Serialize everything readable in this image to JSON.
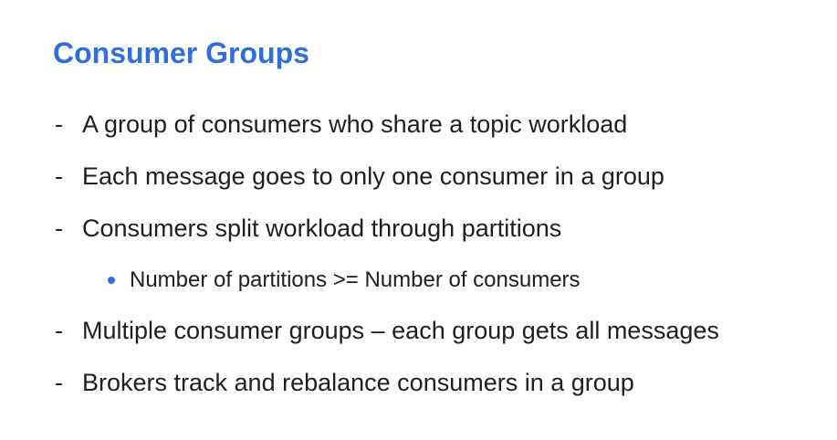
{
  "slide": {
    "title": "Consumer Groups",
    "bullets": [
      {
        "marker": "-",
        "text": "A group of consumers who share a topic workload"
      },
      {
        "marker": "-",
        "text": "Each message goes to only one consumer in a group"
      },
      {
        "marker": "-",
        "text": "Consumers split workload through partitions"
      },
      {
        "text": "Number of partitions >= Number of consumers"
      },
      {
        "marker": "-",
        "text": "Multiple consumer groups – each group gets all messages"
      },
      {
        "marker": "-",
        "text": "Brokers track and rebalance consumers in a group"
      }
    ]
  }
}
